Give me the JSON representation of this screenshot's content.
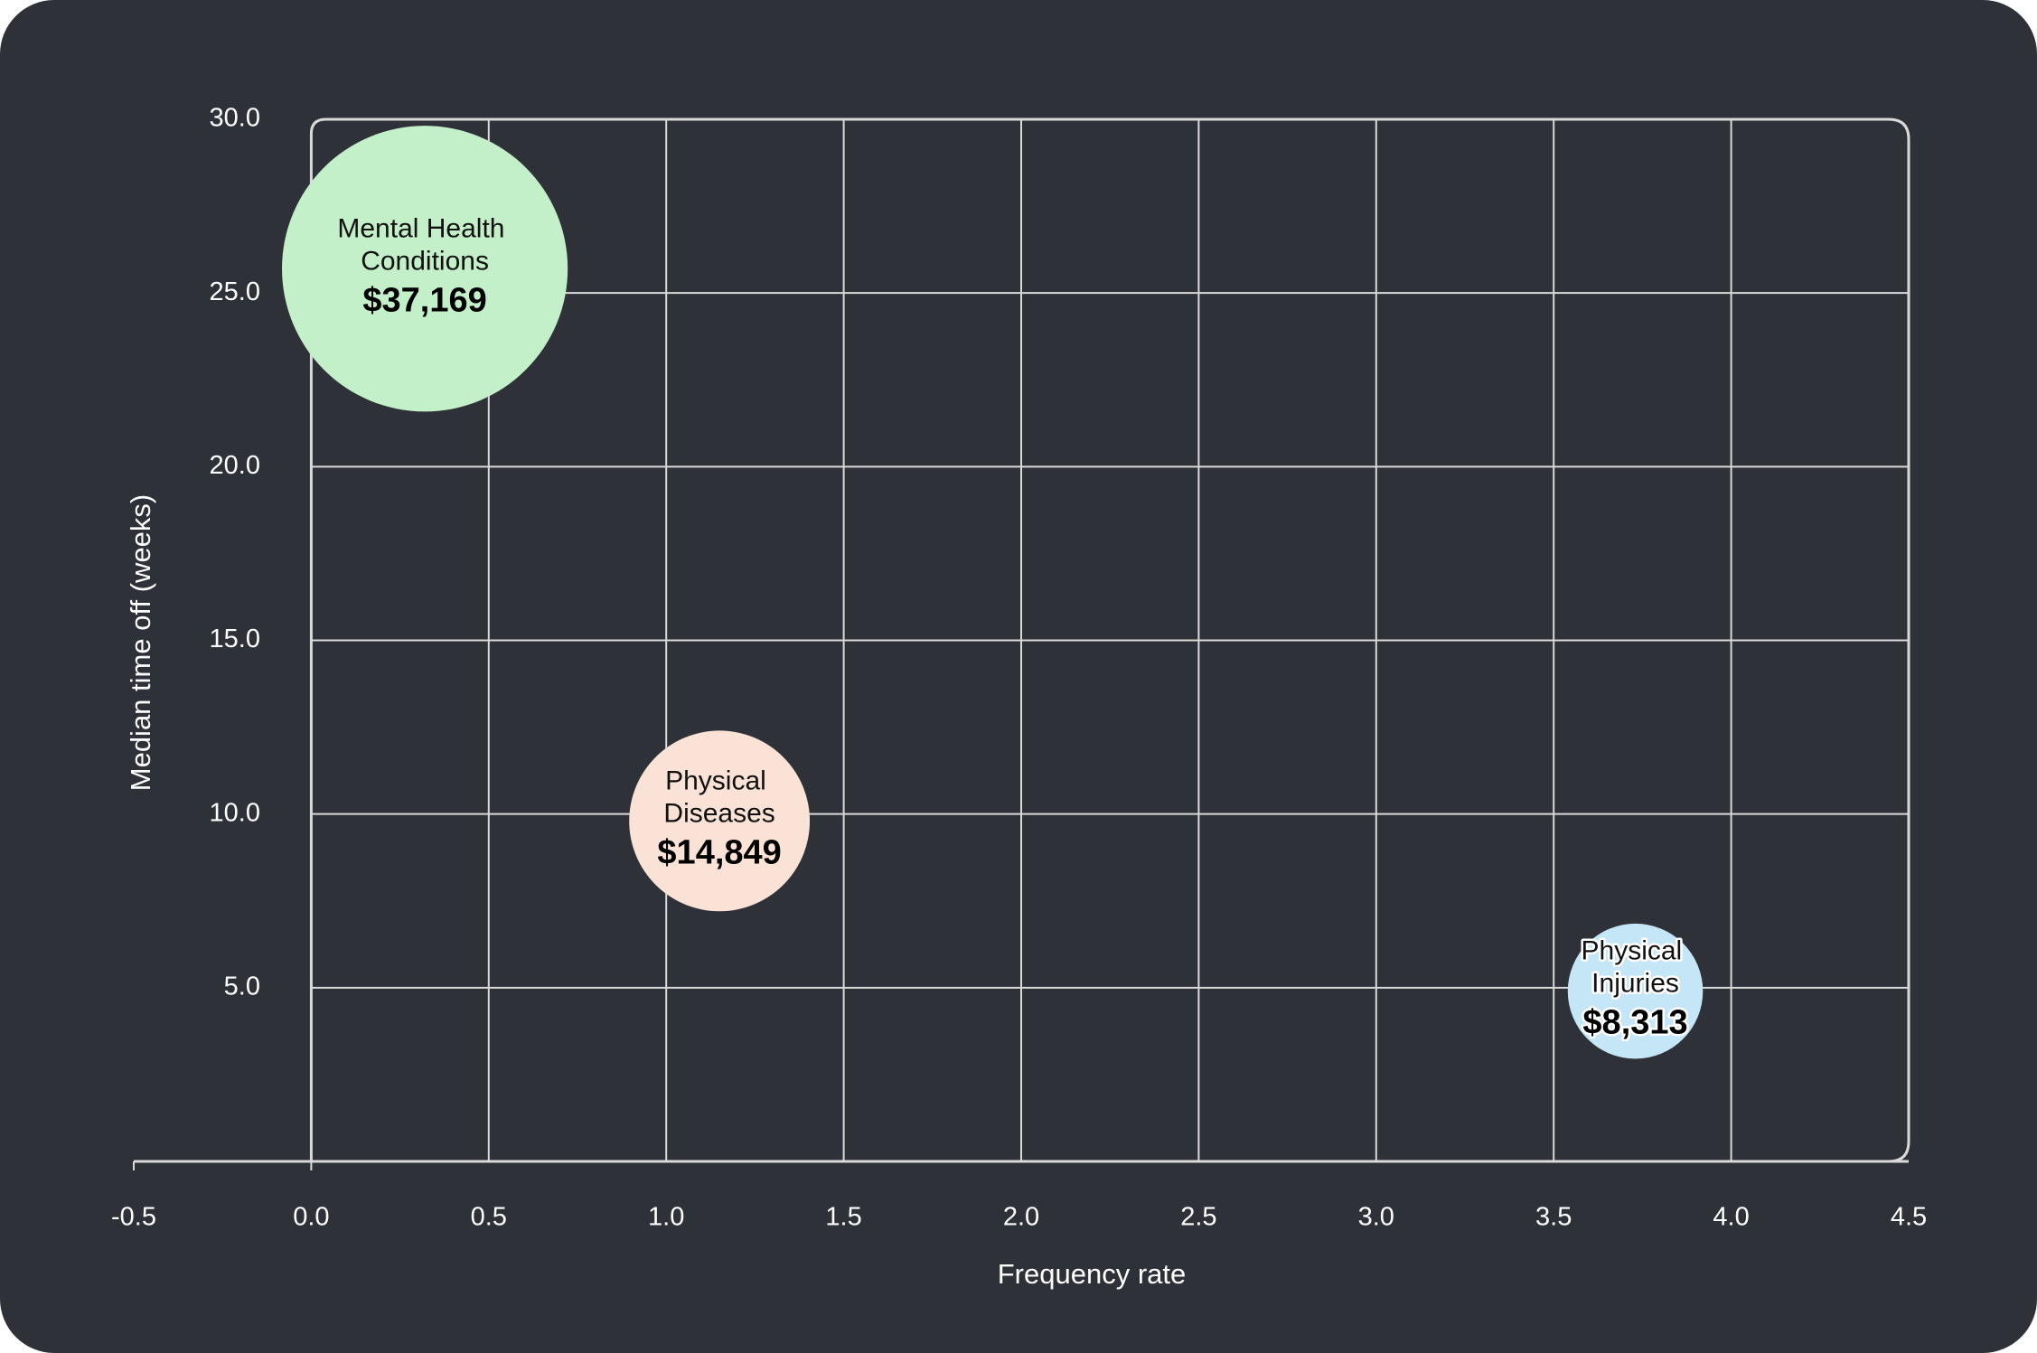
{
  "chart_data": {
    "type": "bubble",
    "x_label": "Frequency rate",
    "y_label": "Median time off (weeks)",
    "xlim": [
      -0.5,
      4.5
    ],
    "ylim": [
      0,
      30
    ],
    "xticks": [
      -0.5,
      {
        "value": 0,
        "label": "0.0"
      },
      0.5,
      {
        "value": 1,
        "label": "1.0"
      },
      1.5,
      {
        "value": 2,
        "label": "2.0"
      },
      2.5,
      {
        "value": 3,
        "label": "3.0"
      },
      3.5,
      {
        "value": 4,
        "label": "4.0"
      },
      4.5
    ],
    "yticks": [
      {
        "value": 5,
        "label": "5.0"
      },
      {
        "value": 10,
        "label": "10.0"
      },
      {
        "value": 15,
        "label": "15.0"
      },
      {
        "value": 20,
        "label": "20.0"
      },
      {
        "value": 25,
        "label": "25.0"
      },
      {
        "value": 30,
        "label": "30.0"
      }
    ],
    "grid": true,
    "series": [
      {
        "name": "Mental Health Conditions",
        "color": "#c3f0c9",
        "x": [
          0.32
        ],
        "values": [
          25.7
        ],
        "sizes": [
          37169
        ],
        "size_labels": [
          "$37,169"
        ]
      },
      {
        "name": "Physical Diseases",
        "color": "#fbe2d6",
        "x": [
          1.15
        ],
        "values": [
          9.8
        ],
        "sizes": [
          14849
        ],
        "size_labels": [
          "$14,849"
        ]
      },
      {
        "name": "Physical Injuries",
        "color": "#c5e6f6",
        "x": [
          3.73
        ],
        "values": [
          4.9
        ],
        "sizes": [
          8313
        ],
        "size_labels": [
          "$8,313"
        ]
      }
    ]
  }
}
